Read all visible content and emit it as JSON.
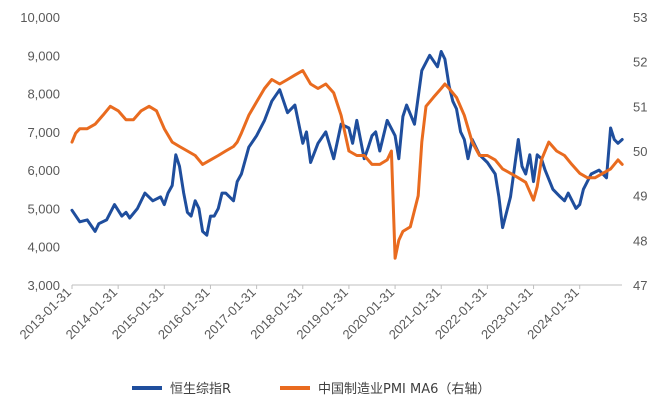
{
  "chart_data": {
    "type": "line",
    "title": "",
    "xlabel": "",
    "x_tick_labels": [
      "2013-01-31",
      "2014-01-31",
      "2015-01-31",
      "2016-01-31",
      "2017-01-31",
      "2018-01-31",
      "2019-01-31",
      "2020-01-31",
      "2021-01-31",
      "2022-01-31",
      "2023-01-31",
      "2024-01-31"
    ],
    "x_range": [
      "2013-01-31",
      "2024-12-31"
    ],
    "y_left": {
      "ylim": [
        3000,
        10000
      ],
      "ticks": [
        "3,000",
        "4,000",
        "5,000",
        "6,000",
        "7,000",
        "8,000",
        "9,000",
        "10,000"
      ]
    },
    "y_right": {
      "ylim": [
        47,
        53
      ],
      "ticks": [
        "47",
        "48",
        "49",
        "50",
        "51",
        "52",
        "53"
      ]
    },
    "grid": false,
    "legend_position": "bottom",
    "series": [
      {
        "name": "恒生综指R",
        "axis": "left",
        "color": "#1F4E9D",
        "x": [
          2013.0,
          2013.17,
          2013.33,
          2013.5,
          2013.58,
          2013.75,
          2013.92,
          2014.08,
          2014.17,
          2014.25,
          2014.42,
          2014.58,
          2014.75,
          2014.92,
          2015.0,
          2015.08,
          2015.17,
          2015.25,
          2015.33,
          2015.42,
          2015.5,
          2015.58,
          2015.67,
          2015.75,
          2015.83,
          2015.92,
          2016.0,
          2016.08,
          2016.17,
          2016.25,
          2016.33,
          2016.5,
          2016.58,
          2016.67,
          2016.83,
          2017.0,
          2017.17,
          2017.33,
          2017.5,
          2017.67,
          2017.83,
          2018.0,
          2018.08,
          2018.17,
          2018.33,
          2018.5,
          2018.67,
          2018.83,
          2019.0,
          2019.08,
          2019.17,
          2019.33,
          2019.42,
          2019.5,
          2019.58,
          2019.67,
          2019.83,
          2020.0,
          2020.08,
          2020.17,
          2020.25,
          2020.42,
          2020.58,
          2020.75,
          2020.92,
          2021.0,
          2021.08,
          2021.17,
          2021.25,
          2021.33,
          2021.42,
          2021.5,
          2021.58,
          2021.67,
          2021.83,
          2022.0,
          2022.17,
          2022.25,
          2022.33,
          2022.5,
          2022.67,
          2022.75,
          2022.83,
          2022.92,
          2023.0,
          2023.08,
          2023.17,
          2023.25,
          2023.42,
          2023.58,
          2023.67,
          2023.75,
          2023.92,
          2024.0,
          2024.08,
          2024.25,
          2024.42,
          2024.5,
          2024.58,
          2024.67,
          2024.75,
          2024.83,
          2024.92
        ],
        "values": [
          4950,
          4650,
          4700,
          4400,
          4600,
          4700,
          5100,
          4800,
          4900,
          4750,
          5000,
          5400,
          5200,
          5300,
          5100,
          5400,
          5600,
          6400,
          6100,
          5400,
          4900,
          4800,
          5200,
          5000,
          4400,
          4300,
          4800,
          4800,
          5000,
          5400,
          5400,
          5200,
          5700,
          5900,
          6600,
          6900,
          7300,
          7800,
          8100,
          7500,
          7700,
          6700,
          7000,
          6200,
          6700,
          7000,
          6300,
          7200,
          7100,
          6700,
          7300,
          6300,
          6600,
          6900,
          7000,
          6500,
          7300,
          6900,
          6300,
          7400,
          7700,
          7200,
          8600,
          9000,
          8700,
          9100,
          8900,
          8200,
          7800,
          7600,
          7000,
          6800,
          6300,
          6800,
          6400,
          6200,
          5900,
          5300,
          4500,
          5300,
          6800,
          6100,
          5900,
          6400,
          5700,
          6400,
          6300,
          6000,
          5500,
          5300,
          5200,
          5400,
          5000,
          5100,
          5500,
          5900,
          6000,
          5900,
          5800,
          7100,
          6800,
          6700,
          6800
        ]
      },
      {
        "name": "中国制造业PMI MA6（右轴）",
        "axis": "right",
        "color": "#E96B1F",
        "x": [
          2013.0,
          2013.08,
          2013.17,
          2013.33,
          2013.5,
          2013.67,
          2013.83,
          2014.0,
          2014.17,
          2014.33,
          2014.5,
          2014.67,
          2014.83,
          2015.0,
          2015.17,
          2015.33,
          2015.5,
          2015.67,
          2015.83,
          2016.0,
          2016.17,
          2016.33,
          2016.5,
          2016.58,
          2016.67,
          2016.83,
          2017.0,
          2017.17,
          2017.33,
          2017.5,
          2017.67,
          2017.83,
          2018.0,
          2018.17,
          2018.33,
          2018.5,
          2018.67,
          2018.83,
          2019.0,
          2019.17,
          2019.33,
          2019.5,
          2019.67,
          2019.83,
          2019.92,
          2020.0,
          2020.08,
          2020.17,
          2020.33,
          2020.5,
          2020.58,
          2020.67,
          2020.83,
          2021.0,
          2021.08,
          2021.17,
          2021.33,
          2021.5,
          2021.67,
          2021.83,
          2022.0,
          2022.17,
          2022.33,
          2022.5,
          2022.67,
          2022.83,
          2023.0,
          2023.08,
          2023.17,
          2023.33,
          2023.5,
          2023.67,
          2023.83,
          2024.0,
          2024.17,
          2024.33,
          2024.5,
          2024.67,
          2024.83,
          2024.92
        ],
        "values": [
          50.2,
          50.4,
          50.5,
          50.5,
          50.6,
          50.8,
          51.0,
          50.9,
          50.7,
          50.7,
          50.9,
          51.0,
          50.9,
          50.5,
          50.2,
          50.1,
          50.0,
          49.9,
          49.7,
          49.8,
          49.9,
          50.0,
          50.1,
          50.2,
          50.4,
          50.8,
          51.1,
          51.4,
          51.6,
          51.5,
          51.6,
          51.7,
          51.8,
          51.5,
          51.4,
          51.5,
          51.3,
          50.8,
          50.0,
          49.9,
          49.9,
          49.7,
          49.7,
          49.8,
          50.0,
          47.6,
          48.0,
          48.2,
          48.3,
          49.0,
          50.2,
          51.0,
          51.2,
          51.4,
          51.5,
          51.4,
          51.2,
          50.8,
          50.2,
          49.9,
          49.9,
          49.8,
          49.6,
          49.5,
          49.4,
          49.3,
          48.9,
          49.2,
          49.8,
          50.2,
          50.0,
          49.9,
          49.7,
          49.5,
          49.4,
          49.4,
          49.5,
          49.6,
          49.8,
          49.7
        ]
      }
    ]
  },
  "legend": [
    {
      "label": "恒生综指R"
    },
    {
      "label": "中国制造业PMI MA6（右轴）"
    }
  ]
}
